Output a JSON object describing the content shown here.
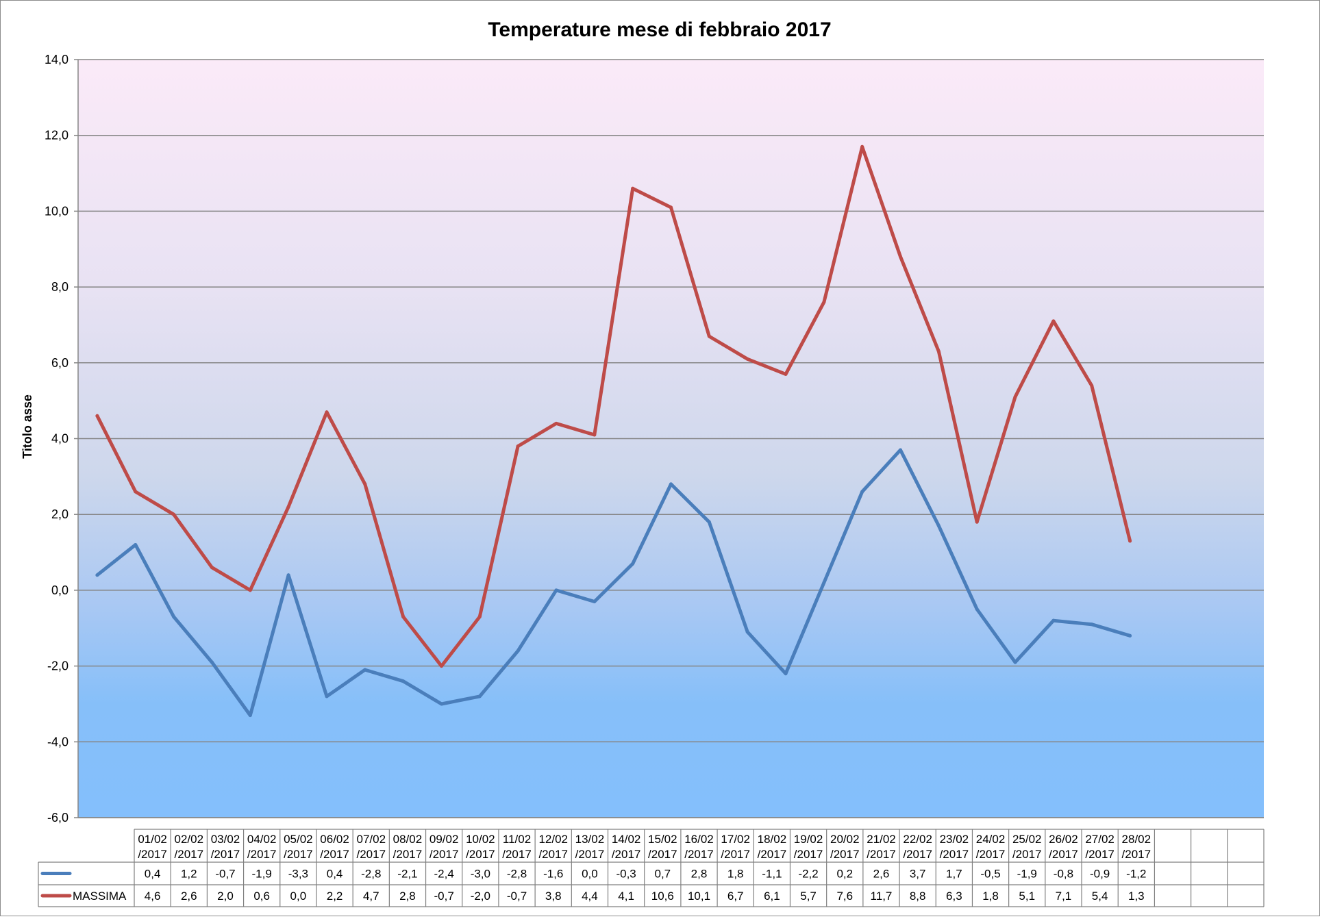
{
  "chart_data": {
    "type": "line",
    "title": "Temperature mese di febbraio 2017",
    "ylabel": "Titolo asse",
    "xlabel": "",
    "ylim": [
      -6,
      14
    ],
    "ytick_step": 2,
    "grid": true,
    "legend": "data-table",
    "categories": [
      "01/02/2017",
      "02/02/2017",
      "03/02/2017",
      "04/02/2017",
      "05/02/2017",
      "06/02/2017",
      "07/02/2017",
      "08/02/2017",
      "09/02/2017",
      "10/02/2017",
      "11/02/2017",
      "12/02/2017",
      "13/02/2017",
      "14/02/2017",
      "15/02/2017",
      "16/02/2017",
      "17/02/2017",
      "18/02/2017",
      "19/02/2017",
      "20/02/2017",
      "21/02/2017",
      "22/02/2017",
      "23/02/2017",
      "24/02/2017",
      "25/02/2017",
      "26/02/2017",
      "27/02/2017",
      "28/02/2017",
      "",
      "",
      ""
    ],
    "series": [
      {
        "name": "",
        "color": "#4a7ebb",
        "values": [
          0.4,
          1.2,
          -0.7,
          -1.9,
          -3.3,
          0.4,
          -2.8,
          -2.1,
          -2.4,
          -3.0,
          -2.8,
          -1.6,
          0.0,
          -0.3,
          0.7,
          2.8,
          1.8,
          -1.1,
          -2.2,
          0.2,
          2.6,
          3.7,
          1.7,
          -0.5,
          -1.9,
          -0.8,
          -0.9,
          -1.2,
          null,
          null,
          null
        ]
      },
      {
        "name": "MASSIMA",
        "color": "#be4b48",
        "values": [
          4.6,
          2.6,
          2.0,
          0.6,
          0.0,
          2.2,
          4.7,
          2.8,
          -0.7,
          -2.0,
          -0.7,
          3.8,
          4.4,
          4.1,
          10.6,
          10.1,
          6.7,
          6.1,
          5.7,
          7.6,
          11.7,
          8.8,
          6.3,
          1.8,
          5.1,
          7.1,
          5.4,
          1.3,
          null,
          null,
          null
        ]
      }
    ],
    "table_rows": [
      [
        "0,4",
        "1,2",
        "-0,7",
        "-1,9",
        "-3,3",
        "0,4",
        "-2,8",
        "-2,1",
        "-2,4",
        "-3,0",
        "-2,8",
        "-1,6",
        "0,0",
        "-0,3",
        "0,7",
        "2,8",
        "1,8",
        "-1,1",
        "-2,2",
        "0,2",
        "2,6",
        "3,7",
        "1,7",
        "-0,5",
        "-1,9",
        "-0,8",
        "-0,9",
        "-1,2",
        "",
        "",
        ""
      ],
      [
        "4,6",
        "2,6",
        "2,0",
        "0,6",
        "0,0",
        "2,2",
        "4,7",
        "2,8",
        "-0,7",
        "-2,0",
        "-0,7",
        "3,8",
        "4,4",
        "4,1",
        "10,6",
        "10,1",
        "6,7",
        "6,1",
        "5,7",
        "7,6",
        "11,7",
        "8,8",
        "6,3",
        "1,8",
        "5,1",
        "7,1",
        "5,4",
        "1,3",
        "",
        "",
        ""
      ]
    ]
  }
}
